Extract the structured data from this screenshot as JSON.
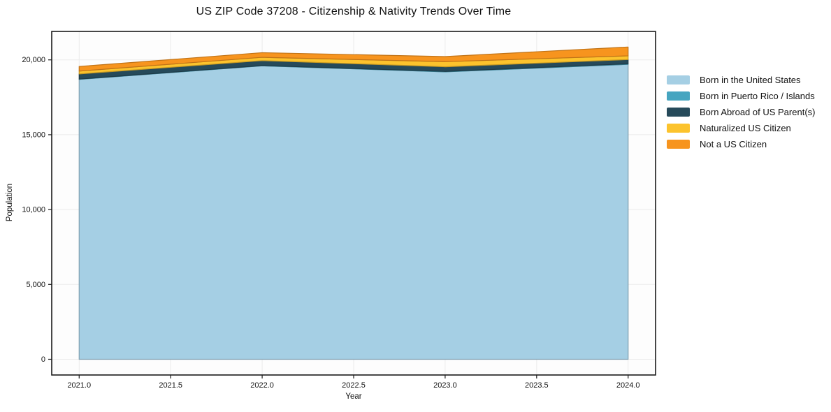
{
  "figure": {
    "title": "US ZIP Code 37208 - Citizenship & Nativity Trends Over Time",
    "xlabel": "Year",
    "ylabel": "Population"
  },
  "chart_data": {
    "type": "area",
    "stacked": true,
    "title": "US ZIP Code 37208 - Citizenship & Nativity Trends Over Time",
    "xlabel": "Year",
    "ylabel": "Population",
    "x": [
      2021,
      2022,
      2023,
      2024
    ],
    "series": [
      {
        "name": "Born in the United States",
        "color": "#a5cfe4",
        "values": [
          18700,
          19600,
          19200,
          19700
        ]
      },
      {
        "name": "Born in Puerto Rico / Islands",
        "color": "#46a5c0",
        "values": [
          20,
          20,
          30,
          40
        ]
      },
      {
        "name": "Born Abroad of US Parent(s)",
        "color": "#264a5a",
        "values": [
          340,
          330,
          310,
          280
        ]
      },
      {
        "name": "Naturalized US Citizen",
        "color": "#fcc32d",
        "values": [
          190,
          220,
          340,
          250
        ]
      },
      {
        "name": "Not a US Citizen",
        "color": "#f7941e",
        "values": [
          310,
          310,
          340,
          590
        ]
      }
    ],
    "stacked_totals": [
      19560,
      20480,
      20220,
      20860
    ],
    "xlim": [
      2020.85,
      2024.15
    ],
    "ylim": [
      -1050,
      21900
    ],
    "xticks": [
      2021.0,
      2021.5,
      2022.0,
      2022.5,
      2023.0,
      2023.5,
      2024.0
    ],
    "yticks": [
      0,
      5000,
      10000,
      15000,
      20000
    ],
    "grid": true,
    "grid_color": "#ebebeb",
    "legend_position": "right",
    "colors": {
      "spine": "#1a1a1a",
      "plot_background": "#fdfdfd",
      "figure_background": "#ffffff",
      "text": "#111111"
    }
  }
}
